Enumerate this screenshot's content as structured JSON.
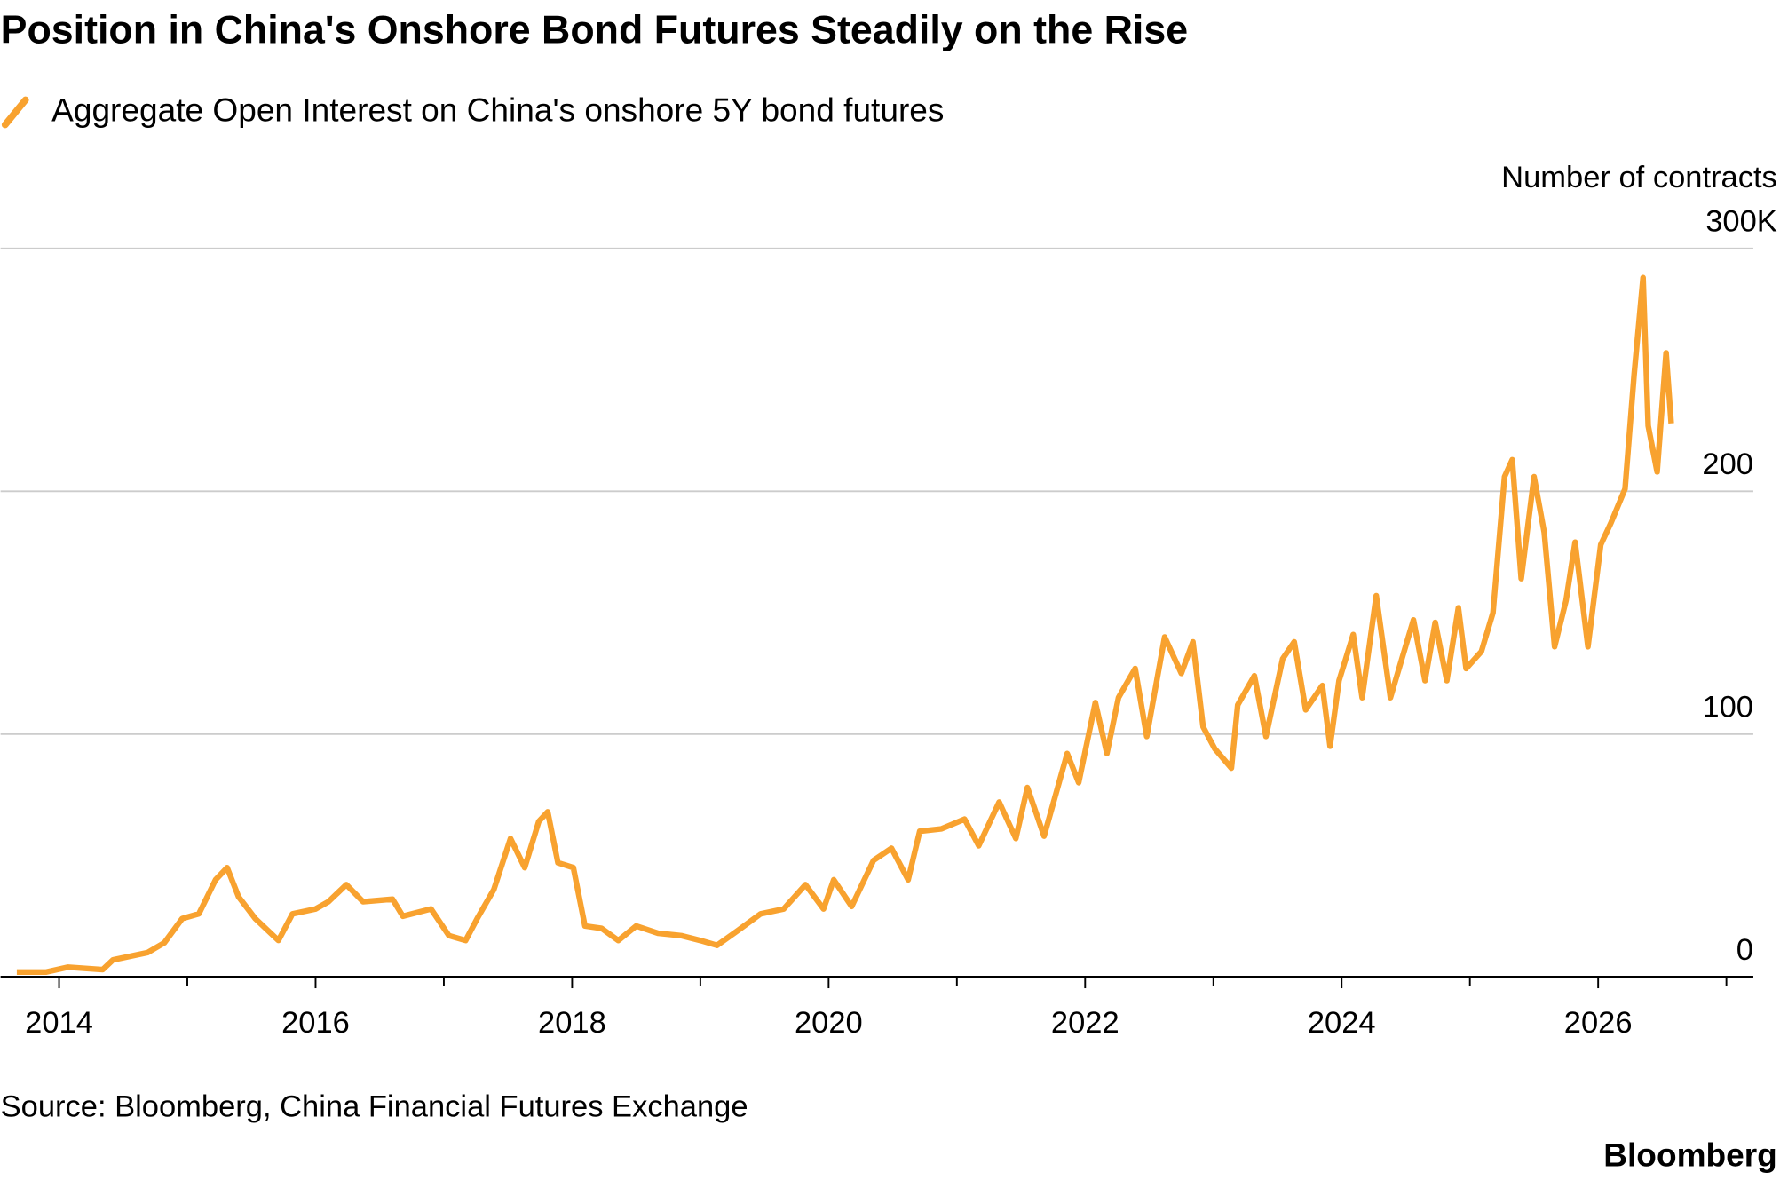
{
  "chart_data": {
    "type": "line",
    "title": "Position in China's Onshore Bond Futures Steadily on the Rise",
    "y_label": "Number of contracts",
    "source": "Source: Bloomberg, China Financial Futures Exchange",
    "branding": "Bloomberg",
    "xlim": [
      2013.65,
      2027.21
    ],
    "xticks": [
      2014,
      2016,
      2018,
      2020,
      2022,
      2024,
      2026
    ],
    "xminorticks": [
      2015,
      2017,
      2019,
      2021,
      2023,
      2025,
      2027
    ],
    "ylim": [
      0,
      300
    ],
    "yticks": [
      0,
      100,
      200,
      {
        "value": 300,
        "label": "300K"
      }
    ],
    "grid": true,
    "x": [
      2013.67,
      2013.9,
      2014.07,
      2014.34,
      2014.42,
      2014.69,
      2014.82,
      2014.96,
      2015.09,
      2015.22,
      2015.31,
      2015.4,
      2015.53,
      2015.71,
      2015.82,
      2016.0,
      2016.1,
      2016.24,
      2016.37,
      2016.6,
      2016.68,
      2016.9,
      2017.04,
      2017.17,
      2017.26,
      2017.39,
      2017.52,
      2017.63,
      2017.74,
      2017.81,
      2017.89,
      2018.01,
      2018.1,
      2018.23,
      2018.36,
      2018.5,
      2018.67,
      2018.85,
      2019.0,
      2019.13,
      2019.29,
      2019.47,
      2019.65,
      2019.82,
      2019.96,
      2020.04,
      2020.18,
      2020.35,
      2020.49,
      2020.62,
      2020.71,
      2020.88,
      2021.06,
      2021.17,
      2021.33,
      2021.46,
      2021.55,
      2021.68,
      2021.86,
      2021.95,
      2022.08,
      2022.17,
      2022.26,
      2022.39,
      2022.48,
      2022.62,
      2022.75,
      2022.84,
      2022.92,
      2023.01,
      2023.14,
      2023.19,
      2023.32,
      2023.41,
      2023.54,
      2023.63,
      2023.72,
      2023.85,
      2023.91,
      2023.98,
      2024.09,
      2024.16,
      2024.27,
      2024.38,
      2024.47,
      2024.56,
      2024.65,
      2024.73,
      2024.82,
      2024.91,
      2024.97,
      2025.09,
      2025.18,
      2025.27,
      2025.33,
      2025.4,
      2025.5,
      2025.58,
      2025.66,
      2025.75,
      2025.82,
      2025.92,
      2026.02,
      2026.1,
      2026.21,
      2026.28,
      2026.35,
      2026.39,
      2026.46,
      2026.53,
      2026.57
    ],
    "series": [
      {
        "name": "Aggregate Open Interest on China's onshore 5Y bond futures",
        "color": "#f8a22f",
        "values": [
          2,
          2,
          4,
          3,
          7,
          10,
          14,
          24,
          26,
          40,
          45,
          33,
          24,
          15,
          26,
          28,
          31,
          38,
          31,
          32,
          25,
          28,
          17,
          15,
          24,
          36,
          57,
          45,
          64,
          68,
          47,
          45,
          21,
          20,
          15,
          21,
          18,
          17,
          15,
          13,
          19,
          26,
          28,
          38,
          28,
          40,
          29,
          48,
          53,
          40,
          60,
          61,
          65,
          54,
          72,
          57,
          78,
          58,
          92,
          80,
          113,
          92,
          115,
          127,
          99,
          140,
          125,
          138,
          103,
          94,
          86,
          112,
          124,
          99,
          131,
          138,
          110,
          120,
          95,
          122,
          141,
          115,
          157,
          115,
          131,
          147,
          122,
          146,
          122,
          152,
          127,
          134,
          150,
          206,
          213,
          164,
          206,
          183,
          136,
          155,
          179,
          136,
          178,
          187,
          201,
          248,
          288,
          227,
          208,
          257,
          228
        ]
      }
    ]
  }
}
